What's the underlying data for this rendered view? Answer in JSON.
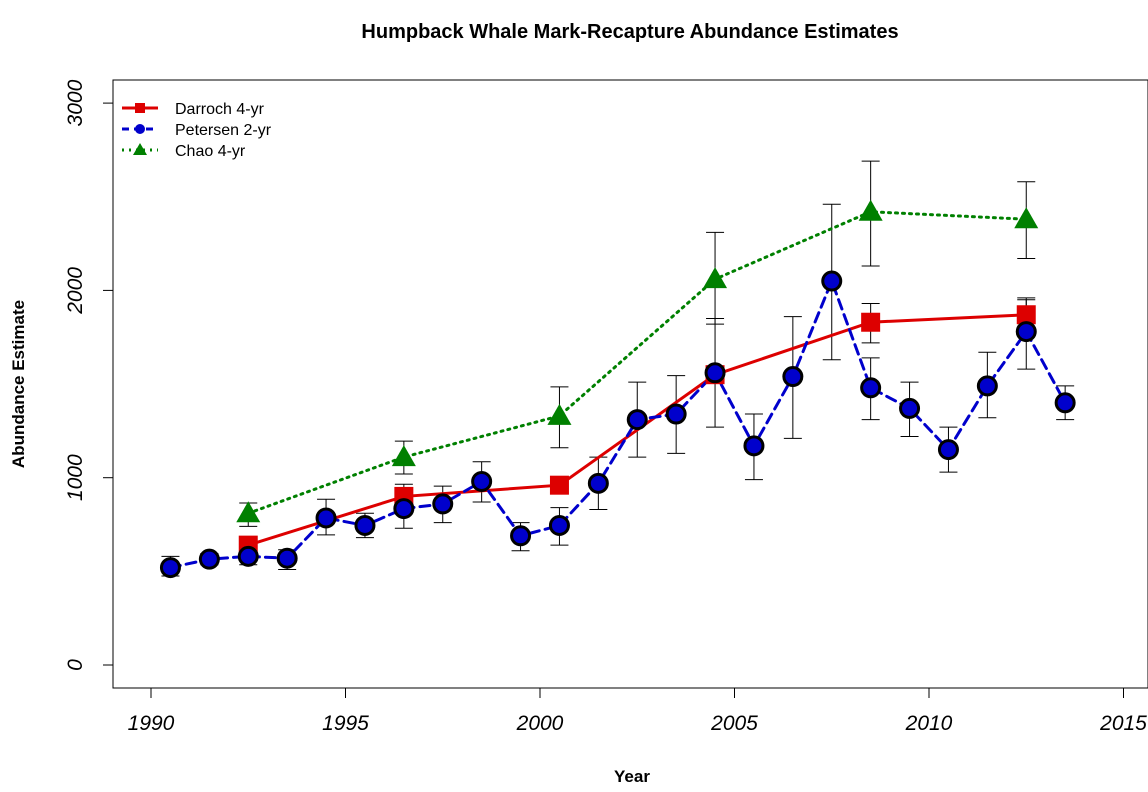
{
  "chart_data": {
    "type": "line",
    "title": "Humpback Whale Mark-Recapture Abundance Estimates",
    "xlabel": "Year",
    "ylabel": "Abundance Estimate",
    "xlim": [
      1990,
      2015
    ],
    "ylim": [
      0,
      3000
    ],
    "x_ticks": [
      1990,
      1995,
      2000,
      2005,
      2010,
      2015
    ],
    "y_ticks": [
      0,
      1000,
      2000,
      3000
    ],
    "grid": false,
    "legend_position": "top-left",
    "series": [
      {
        "name": "Darroch 4-yr",
        "color": "#dd0000",
        "line_style": "solid",
        "marker": "square",
        "x": [
          1992.5,
          1996.5,
          2000.5,
          2004.5,
          2008.5,
          2012.5
        ],
        "y": [
          640,
          900,
          960,
          1550,
          1830,
          1870
        ],
        "err_low": [
          null,
          null,
          null,
          null,
          1720,
          1780
        ],
        "err_high": [
          null,
          null,
          null,
          null,
          1930,
          1950
        ]
      },
      {
        "name": "Petersen 2-yr",
        "color": "#0000cc",
        "line_style": "dashed",
        "marker": "circle",
        "x": [
          1990.5,
          1991.5,
          1992.5,
          1993.5,
          1994.5,
          1995.5,
          1996.5,
          1997.5,
          1998.5,
          1999.5,
          2000.5,
          2001.5,
          2002.5,
          2003.5,
          2004.5,
          2005.5,
          2006.5,
          2007.5,
          2008.5,
          2009.5,
          2010.5,
          2011.5,
          2012.5,
          2013.5
        ],
        "y": [
          520,
          565,
          580,
          570,
          785,
          745,
          835,
          860,
          980,
          690,
          745,
          970,
          1310,
          1340,
          1560,
          1170,
          1540,
          2050,
          1480,
          1370,
          1150,
          1490,
          1780,
          1400
        ],
        "err_low": [
          475,
          535,
          535,
          510,
          695,
          680,
          730,
          760,
          870,
          610,
          640,
          830,
          1110,
          1130,
          1270,
          990,
          1210,
          1630,
          1310,
          1220,
          1030,
          1320,
          1580,
          1310
        ],
        "err_high": [
          580,
          595,
          625,
          615,
          885,
          810,
          965,
          955,
          1085,
          760,
          840,
          1110,
          1510,
          1545,
          1850,
          1340,
          1860,
          2460,
          1640,
          1510,
          1270,
          1670,
          1960,
          1490
        ]
      },
      {
        "name": "Chao 4-yr",
        "color": "#008000",
        "line_style": "dotted",
        "marker": "triangle",
        "x": [
          1992.5,
          1996.5,
          2000.5,
          2004.5,
          2008.5,
          2012.5
        ],
        "y": [
          810,
          1110,
          1330,
          2060,
          2420,
          2380
        ],
        "err_low": [
          740,
          1020,
          1160,
          1820,
          2130,
          2170
        ],
        "err_high": [
          865,
          1195,
          1485,
          2310,
          2690,
          2580
        ]
      }
    ]
  }
}
